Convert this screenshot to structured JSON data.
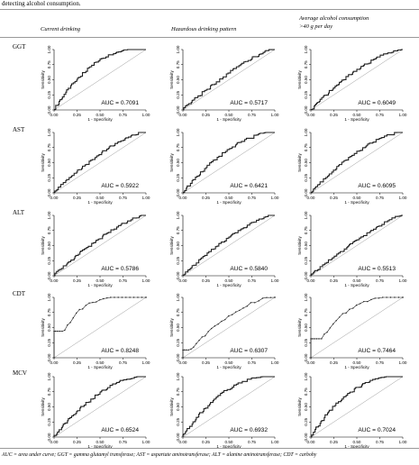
{
  "caption_fragment": "detecting alcohol consumption.",
  "columns": [
    {
      "label": "Current drinking"
    },
    {
      "label": "Hazardous drinking pattern"
    },
    {
      "label_line1": "Average alcohol consumption",
      "label_line2": ">40 g per day"
    }
  ],
  "rows": [
    "GGT",
    "AST",
    "ALT",
    "CDT",
    "MCV"
  ],
  "axis": {
    "xlabel": "1 - Specificity",
    "ylabel": "Sensitivity",
    "ticks": [
      "0.00",
      "0.25",
      "0.50",
      "0.75",
      "1.00"
    ]
  },
  "footnote": "AUC = area under curve; GGT = gamma glutamyl transferase; AST = aspartate aminotransferase; ALT = alanine aminotransferase; CDT = carbohy",
  "chart_data": [
    {
      "type": "line",
      "row": "GGT",
      "column": "Current drinking",
      "auc_label": "AUC = 0.7091",
      "auc": 0.7091,
      "xlim": [
        0,
        1
      ],
      "ylim": [
        0,
        1
      ],
      "xlabel": "1 - Specificity",
      "ylabel": "Sensitivity",
      "curve_style": "step"
    },
    {
      "type": "line",
      "row": "GGT",
      "column": "Hazardous drinking pattern",
      "auc_label": "AUC = 0.5717",
      "auc": 0.5717,
      "xlim": [
        0,
        1
      ],
      "ylim": [
        0,
        1
      ],
      "xlabel": "1 - Specificity",
      "ylabel": "Sensitivity",
      "curve_style": "step"
    },
    {
      "type": "line",
      "row": "GGT",
      "column": "Average alcohol consumption >40 g per day",
      "auc_label": "AUC = 0.6049",
      "auc": 0.6049,
      "xlim": [
        0,
        1
      ],
      "ylim": [
        0,
        1
      ],
      "xlabel": "1 - Specificity",
      "ylabel": "Sensitivity",
      "curve_style": "step"
    },
    {
      "type": "line",
      "row": "AST",
      "column": "Current drinking",
      "auc_label": "AUC = 0.5922",
      "auc": 0.5922,
      "xlim": [
        0,
        1
      ],
      "ylim": [
        0,
        1
      ],
      "xlabel": "1 - Specificity",
      "ylabel": "Sensitivity",
      "curve_style": "step"
    },
    {
      "type": "line",
      "row": "AST",
      "column": "Hazardous drinking pattern",
      "auc_label": "AUC = 0.6421",
      "auc": 0.6421,
      "xlim": [
        0,
        1
      ],
      "ylim": [
        0,
        1
      ],
      "xlabel": "1 - Specificity",
      "ylabel": "Sensitivity",
      "curve_style": "step"
    },
    {
      "type": "line",
      "row": "AST",
      "column": "Average alcohol consumption >40 g per day",
      "auc_label": "AUC = 0.6095",
      "auc": 0.6095,
      "xlim": [
        0,
        1
      ],
      "ylim": [
        0,
        1
      ],
      "xlabel": "1 - Specificity",
      "ylabel": "Sensitivity",
      "curve_style": "step"
    },
    {
      "type": "line",
      "row": "ALT",
      "column": "Current drinking",
      "auc_label": "AUC = 0.5786",
      "auc": 0.5786,
      "xlim": [
        0,
        1
      ],
      "ylim": [
        0,
        1
      ],
      "xlabel": "1 - Specificity",
      "ylabel": "Sensitivity",
      "curve_style": "step"
    },
    {
      "type": "line",
      "row": "ALT",
      "column": "Hazardous drinking pattern",
      "auc_label": "AUC = 0.5840",
      "auc": 0.584,
      "xlim": [
        0,
        1
      ],
      "ylim": [
        0,
        1
      ],
      "xlabel": "1 - Specificity",
      "ylabel": "Sensitivity",
      "curve_style": "step"
    },
    {
      "type": "line",
      "row": "ALT",
      "column": "Average alcohol consumption >40 g per day",
      "auc_label": "AUC = 0.5513",
      "auc": 0.5513,
      "xlim": [
        0,
        1
      ],
      "ylim": [
        0,
        1
      ],
      "xlabel": "1 - Specificity",
      "ylabel": "Sensitivity",
      "curve_style": "step"
    },
    {
      "type": "line",
      "row": "CDT",
      "column": "Current drinking",
      "auc_label": "AUC = 0.8248",
      "auc": 0.8248,
      "xlim": [
        0,
        1
      ],
      "ylim": [
        0,
        1
      ],
      "xlabel": "1 - Specificity",
      "ylabel": "Sensitivity",
      "curve_style": "sparse"
    },
    {
      "type": "line",
      "row": "CDT",
      "column": "Hazardous drinking pattern",
      "auc_label": "AUC = 0.6307",
      "auc": 0.6307,
      "xlim": [
        0,
        1
      ],
      "ylim": [
        0,
        1
      ],
      "xlabel": "1 - Specificity",
      "ylabel": "Sensitivity",
      "curve_style": "sparse"
    },
    {
      "type": "line",
      "row": "CDT",
      "column": "Average alcohol consumption >40 g per day",
      "auc_label": "AUC = 0.7464",
      "auc": 0.7464,
      "xlim": [
        0,
        1
      ],
      "ylim": [
        0,
        1
      ],
      "xlabel": "1 - Specificity",
      "ylabel": "Sensitivity",
      "curve_style": "sparse"
    },
    {
      "type": "line",
      "row": "MCV",
      "column": "Current drinking",
      "auc_label": "AUC = 0.6524",
      "auc": 0.6524,
      "xlim": [
        0,
        1
      ],
      "ylim": [
        0,
        1
      ],
      "xlabel": "1 - Specificity",
      "ylabel": "Sensitivity",
      "curve_style": "step"
    },
    {
      "type": "line",
      "row": "MCV",
      "column": "Hazardous drinking pattern",
      "auc_label": "AUC = 0.6932",
      "auc": 0.6932,
      "xlim": [
        0,
        1
      ],
      "ylim": [
        0,
        1
      ],
      "xlabel": "1 - Specificity",
      "ylabel": "Sensitivity",
      "curve_style": "step"
    },
    {
      "type": "line",
      "row": "MCV",
      "column": "Average alcohol consumption >40 g per day",
      "auc_label": "AUC = 0.7024",
      "auc": 0.7024,
      "xlim": [
        0,
        1
      ],
      "ylim": [
        0,
        1
      ],
      "xlabel": "1 - Specificity",
      "ylabel": "Sensitivity",
      "curve_style": "step"
    }
  ]
}
